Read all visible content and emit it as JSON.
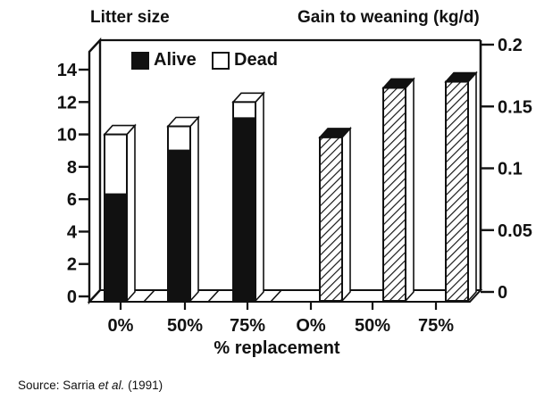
{
  "figure": {
    "left_title": "Litter size",
    "right_title": "Gain to weaning (kg/d)",
    "source": {
      "prefix": "Source: Sarria ",
      "etal": "et al.",
      "suffix": " (1991)"
    }
  },
  "chart_data": {
    "type": "bar",
    "categories": [
      "0%",
      "50%",
      "75%",
      "O%",
      "50%",
      "75%"
    ],
    "xlabel": "% replacement",
    "left_axis": {
      "title": "Litter size",
      "range": [
        0,
        14
      ],
      "ticks": [
        0,
        2,
        4,
        6,
        8,
        10,
        12,
        14
      ]
    },
    "right_axis": {
      "title": "Gain to weaning (kg/d)",
      "range": [
        0,
        0.2
      ],
      "ticks": [
        0,
        0.05,
        0.1,
        0.15,
        0.2
      ],
      "tick_labels": [
        "0",
        "0.05",
        "0.1",
        "0.15",
        "0.2"
      ]
    },
    "legend": [
      {
        "label": "Alive",
        "fill": "#111111"
      },
      {
        "label": "Dead",
        "fill": "#ffffff"
      }
    ],
    "series": [
      {
        "name": "Alive",
        "axis": "left",
        "style": "solid-black",
        "values": [
          6.3,
          9.0,
          11.0,
          null,
          null,
          null
        ]
      },
      {
        "name": "Dead",
        "axis": "left",
        "style": "white-stacked",
        "values": [
          3.7,
          1.5,
          1.0,
          null,
          null,
          null
        ]
      },
      {
        "name": "Gain to weaning",
        "axis": "right",
        "style": "hatched",
        "values": [
          null,
          null,
          null,
          0.125,
          0.165,
          0.17
        ]
      }
    ],
    "layout_hints": {
      "grid": false,
      "legend_position": "top-inside",
      "style": "3d-scanned-monochrome"
    },
    "colors": {
      "ink": "#111111",
      "paper": "#ffffff"
    }
  }
}
